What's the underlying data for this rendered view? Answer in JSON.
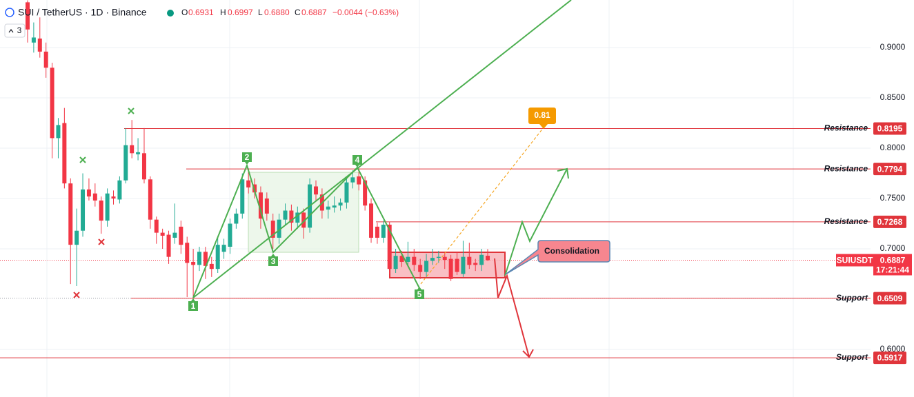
{
  "header": {
    "symbol": "SUI / TetherUS · 1D · Binance",
    "o_label": "O",
    "o": 0.6931,
    "h_label": "H",
    "h": 0.6997,
    "l_label": "L",
    "l": {
      "value": 0.688,
      "label": "0.6880"
    },
    "c_label": "C",
    "c": 0.6887,
    "change": "−0.0044 (−0.63%)",
    "indicator_count": "3"
  },
  "chart_data": {
    "type": "candlestick",
    "open": [
      0.945,
      0.905,
      0.909,
      0.896,
      0.88,
      0.81,
      0.825,
      0.765,
      0.704,
      0.718,
      0.759,
      0.755,
      0.748,
      0.728,
      0.752,
      0.749,
      0.768,
      0.803,
      0.794,
      0.795,
      0.769,
      0.729,
      0.716,
      0.714,
      0.711,
      0.722,
      0.706,
      0.687,
      0.684,
      0.697,
      0.685,
      0.68,
      0.697,
      0.702,
      0.725,
      0.735,
      0.768,
      0.764,
      0.756,
      0.75,
      0.728,
      0.711,
      0.729,
      0.738,
      0.726,
      0.736,
      0.721,
      0.762,
      0.754,
      0.739,
      0.741,
      0.743,
      0.746,
      0.766,
      0.772,
      0.768,
      0.745,
      0.722,
      0.711,
      0.724,
      0.68,
      0.693,
      0.687,
      0.692,
      0.684,
      0.677,
      0.688,
      0.691,
      0.692,
      0.69,
      0.69,
      0.675,
      0.692,
      0.686,
      0.684,
      0.6931
    ],
    "high": [
      0.947,
      0.925,
      0.93,
      0.905,
      0.885,
      0.83,
      0.84,
      0.77,
      0.74,
      0.775,
      0.77,
      0.765,
      0.752,
      0.76,
      0.758,
      0.772,
      0.82,
      0.828,
      0.81,
      0.82,
      0.772,
      0.732,
      0.72,
      0.718,
      0.745,
      0.728,
      0.712,
      0.7,
      0.702,
      0.702,
      0.692,
      0.712,
      0.71,
      0.73,
      0.74,
      0.775,
      0.78,
      0.77,
      0.762,
      0.756,
      0.735,
      0.735,
      0.745,
      0.744,
      0.742,
      0.74,
      0.77,
      0.768,
      0.76,
      0.748,
      0.752,
      0.75,
      0.77,
      0.778,
      0.78,
      0.772,
      0.75,
      0.726,
      0.728,
      0.727,
      0.7,
      0.698,
      0.707,
      0.7,
      0.69,
      0.695,
      0.7,
      0.698,
      0.696,
      0.694,
      0.697,
      0.708,
      0.706,
      0.69,
      0.7,
      0.6997
    ],
    "low": [
      0.905,
      0.895,
      0.89,
      0.87,
      0.79,
      0.79,
      0.76,
      0.665,
      0.663,
      0.712,
      0.748,
      0.742,
      0.715,
      0.722,
      0.744,
      0.745,
      0.765,
      0.79,
      0.788,
      0.765,
      0.72,
      0.705,
      0.7,
      0.685,
      0.705,
      0.695,
      0.652,
      0.65,
      0.678,
      0.67,
      0.672,
      0.676,
      0.69,
      0.695,
      0.72,
      0.73,
      0.755,
      0.75,
      0.72,
      0.728,
      0.7,
      0.705,
      0.724,
      0.718,
      0.72,
      0.71,
      0.716,
      0.748,
      0.73,
      0.73,
      0.736,
      0.738,
      0.74,
      0.76,
      0.758,
      0.738,
      0.706,
      0.705,
      0.706,
      0.675,
      0.676,
      0.682,
      0.682,
      0.678,
      0.67,
      0.672,
      0.684,
      0.686,
      0.68,
      0.668,
      0.674,
      0.672,
      0.68,
      0.678,
      0.678,
      0.688
    ],
    "close": [
      0.918,
      0.91,
      0.896,
      0.88,
      0.81,
      0.823,
      0.765,
      0.704,
      0.718,
      0.759,
      0.752,
      0.748,
      0.728,
      0.755,
      0.75,
      0.768,
      0.803,
      0.795,
      0.796,
      0.769,
      0.729,
      0.716,
      0.713,
      0.692,
      0.716,
      0.704,
      0.686,
      0.684,
      0.697,
      0.683,
      0.68,
      0.704,
      0.704,
      0.725,
      0.735,
      0.769,
      0.761,
      0.756,
      0.73,
      0.735,
      0.711,
      0.729,
      0.738,
      0.726,
      0.736,
      0.721,
      0.764,
      0.754,
      0.738,
      0.742,
      0.743,
      0.746,
      0.766,
      0.771,
      0.764,
      0.743,
      0.711,
      0.711,
      0.724,
      0.68,
      0.693,
      0.687,
      0.692,
      0.684,
      0.677,
      0.688,
      0.691,
      0.692,
      0.689,
      0.67,
      0.677,
      0.692,
      0.684,
      0.684,
      0.694,
      0.6887
    ],
    "up_color": "#22ab94",
    "down_color": "#f23645",
    "level_color": "#e0353b",
    "ylim": [
      0.5527,
      0.9473
    ],
    "yticks": [
      {
        "value": 0.9,
        "label": "0.9000"
      },
      {
        "value": 0.85,
        "label": "0.8500"
      },
      {
        "value": 0.8,
        "label": "0.8000"
      },
      {
        "value": 0.75,
        "label": "0.7500"
      },
      {
        "value": 0.7,
        "label": "0.7000"
      },
      {
        "value": 0.6,
        "label": "0.6000"
      }
    ],
    "grid": true,
    "levels": [
      {
        "name": "Resistance",
        "value": 0.8195
      },
      {
        "name": "Resistance",
        "value": 0.7794
      },
      {
        "name": "Resistance",
        "value": 0.7268
      },
      {
        "name": "Support",
        "value": 0.6509
      },
      {
        "name": "Support",
        "value": 0.5917
      }
    ],
    "last_price": {
      "symbol": "SUIUSDT",
      "value": 0.6887,
      "countdown": "17:21:44"
    },
    "annotations": {
      "target": 0.81,
      "consolidation": "Consolidation",
      "points": [
        "1",
        "2",
        "3",
        "4",
        "5"
      ]
    }
  }
}
